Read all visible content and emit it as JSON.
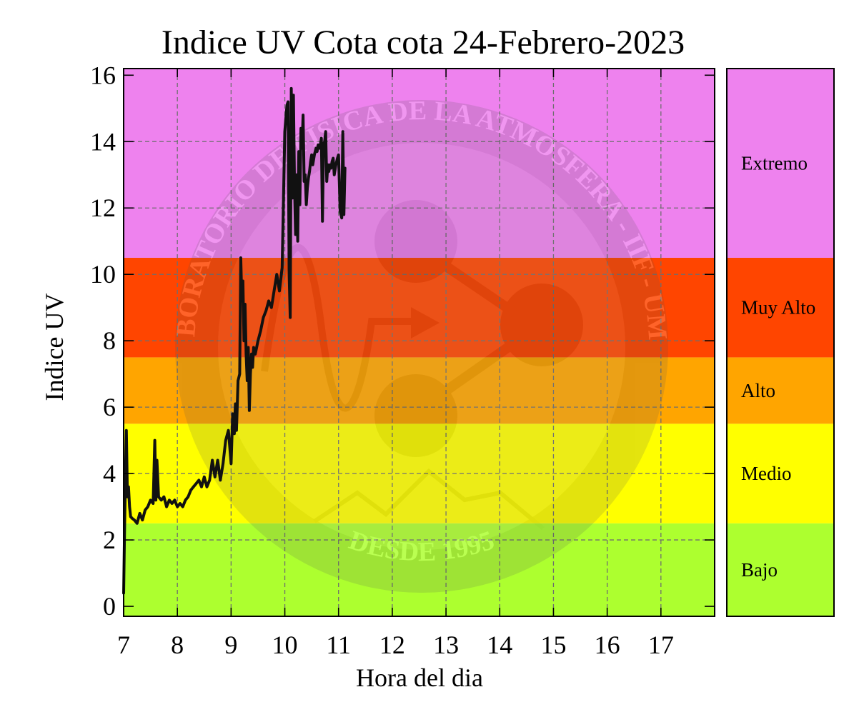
{
  "chart_data": {
    "type": "line",
    "title": "Indice UV Cota cota 24-Febrero-2023",
    "xlabel": "Hora del dia",
    "ylabel": "Indice UV",
    "xlim": [
      7,
      18
    ],
    "ylim": [
      -0.3,
      16.2
    ],
    "xticks": [
      7,
      8,
      9,
      10,
      11,
      12,
      13,
      14,
      15,
      16,
      17
    ],
    "yticks": [
      0,
      2,
      4,
      6,
      8,
      10,
      12,
      14,
      16
    ],
    "grid": true,
    "bands": [
      {
        "name": "Bajo",
        "from": -0.3,
        "to": 2.5,
        "color": "#adff2f"
      },
      {
        "name": "Medio",
        "from": 2.5,
        "to": 5.5,
        "color": "#ffff00"
      },
      {
        "name": "Alto",
        "from": 5.5,
        "to": 7.5,
        "color": "#ffa500"
      },
      {
        "name": "Muy Alto",
        "from": 7.5,
        "to": 10.5,
        "color": "#ff4500"
      },
      {
        "name": "Extremo",
        "from": 10.5,
        "to": 16.2,
        "color": "#ee82ee"
      }
    ],
    "watermark": {
      "top": "LABORATORIO DE FISICA DE LA ATMOSFERA - IIF - UMSA",
      "bottom": "DESDE 1995"
    },
    "series": [
      {
        "color": "#111111",
        "x": [
          7.0,
          7.02,
          7.05,
          7.07,
          7.09,
          7.11,
          7.13,
          7.16,
          7.2,
          7.25,
          7.3,
          7.35,
          7.4,
          7.45,
          7.5,
          7.55,
          7.58,
          7.6,
          7.62,
          7.65,
          7.7,
          7.75,
          7.8,
          7.85,
          7.9,
          7.95,
          8.0,
          8.05,
          8.1,
          8.15,
          8.2,
          8.25,
          8.3,
          8.35,
          8.4,
          8.45,
          8.5,
          8.55,
          8.6,
          8.65,
          8.7,
          8.75,
          8.8,
          8.85,
          8.9,
          8.95,
          9.0,
          9.03,
          9.06,
          9.08,
          9.1,
          9.13,
          9.16,
          9.18,
          9.2,
          9.22,
          9.24,
          9.26,
          9.28,
          9.3,
          9.32,
          9.34,
          9.36,
          9.38,
          9.4,
          9.42,
          9.45,
          9.5,
          9.55,
          9.6,
          9.65,
          9.7,
          9.75,
          9.8,
          9.85,
          9.9,
          9.95,
          10.0,
          10.02,
          10.04,
          10.06,
          10.08,
          10.1,
          10.12,
          10.14,
          10.16,
          10.18,
          10.2,
          10.22,
          10.24,
          10.26,
          10.28,
          10.3,
          10.32,
          10.34,
          10.36,
          10.38,
          10.4,
          10.42,
          10.44,
          10.46,
          10.48,
          10.5,
          10.52,
          10.55,
          10.58,
          10.6,
          10.62,
          10.65,
          10.68,
          10.7,
          10.72,
          10.74,
          10.76,
          10.78,
          10.8,
          10.82,
          10.84,
          10.86,
          10.88,
          10.9,
          10.92,
          10.95,
          10.98,
          11.0,
          11.03,
          11.06,
          11.08,
          11.1,
          11.12
        ],
        "values": [
          0.4,
          2.6,
          5.3,
          3.3,
          3.6,
          3.0,
          2.7,
          2.65,
          2.6,
          2.5,
          2.8,
          2.6,
          2.9,
          3.0,
          3.2,
          3.1,
          5.0,
          3.2,
          4.4,
          3.3,
          3.2,
          3.3,
          3.0,
          3.2,
          3.1,
          3.2,
          3.0,
          3.1,
          3.0,
          3.2,
          3.3,
          3.5,
          3.6,
          3.7,
          3.8,
          3.6,
          3.9,
          3.6,
          3.8,
          4.4,
          3.9,
          4.4,
          3.8,
          4.3,
          5.0,
          5.3,
          4.3,
          5.8,
          5.2,
          6.1,
          5.3,
          6.8,
          7.0,
          10.5,
          9.2,
          9.8,
          8.0,
          9.1,
          7.6,
          6.8,
          7.8,
          5.9,
          7.0,
          7.6,
          7.2,
          7.8,
          7.6,
          8.0,
          8.3,
          8.7,
          8.9,
          9.2,
          9.0,
          9.5,
          10.0,
          9.5,
          10.2,
          14.3,
          14.7,
          15.1,
          15.2,
          10.0,
          8.7,
          15.6,
          12.3,
          15.4,
          12.7,
          11.2,
          13.0,
          11.0,
          13.7,
          12.1,
          14.4,
          13.8,
          14.8,
          12.8,
          13.0,
          12.1,
          12.6,
          12.9,
          13.1,
          13.4,
          13.6,
          13.3,
          13.6,
          13.8,
          13.7,
          13.9,
          13.8,
          14.1,
          11.6,
          13.9,
          14.0,
          14.3,
          12.8,
          13.3,
          13.1,
          13.3,
          13.2,
          13.4,
          13.5,
          13.0,
          13.3,
          13.5,
          13.6,
          11.9,
          11.7,
          14.3,
          11.8,
          13.2
        ]
      }
    ]
  }
}
